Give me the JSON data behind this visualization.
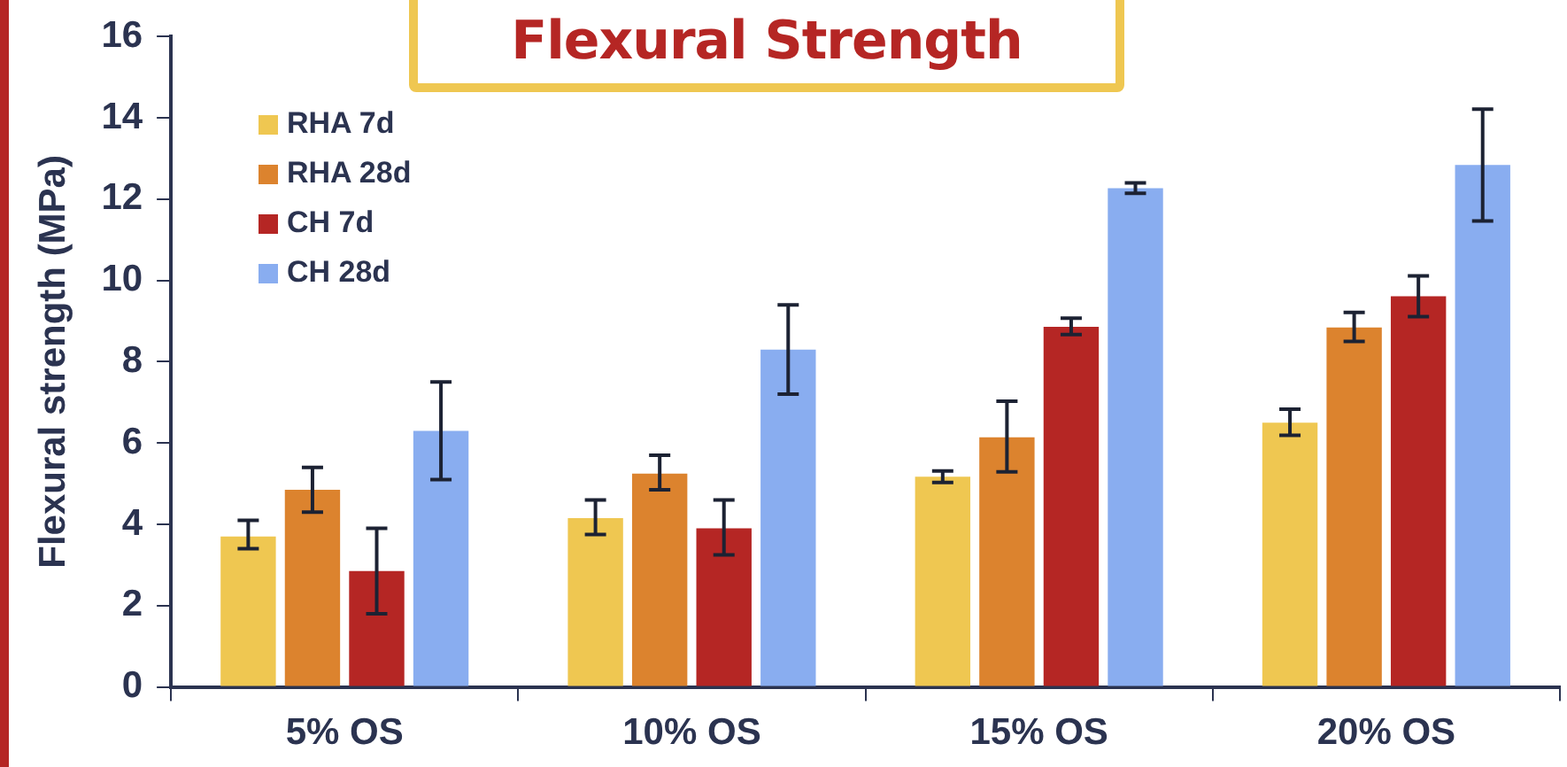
{
  "chart_data": {
    "type": "bar",
    "title": "Flexural Strength",
    "ylabel": "Flexural strength (MPa)",
    "categories": [
      "5% OS",
      "10% OS",
      "15% OS",
      "20% OS"
    ],
    "series": [
      {
        "name": "RHA 7d",
        "color": "#efc751",
        "values": [
          3.7,
          4.15,
          5.17,
          6.5
        ],
        "errors": [
          [
            3.4,
            4.1
          ],
          [
            3.75,
            4.6
          ],
          [
            5.03,
            5.31
          ],
          [
            6.19,
            6.83
          ]
        ]
      },
      {
        "name": "RHA 28d",
        "color": "#dc832e",
        "values": [
          4.85,
          5.25,
          6.14,
          8.84
        ],
        "errors": [
          [
            4.3,
            5.4
          ],
          [
            4.85,
            5.7
          ],
          [
            5.29,
            7.03
          ],
          [
            8.5,
            9.21
          ]
        ]
      },
      {
        "name": "CH 7d",
        "color": "#b52624",
        "values": [
          2.85,
          3.9,
          8.86,
          9.61
        ],
        "errors": [
          [
            1.8,
            3.9
          ],
          [
            3.25,
            4.6
          ],
          [
            8.67,
            9.07
          ],
          [
            9.11,
            10.11
          ]
        ]
      },
      {
        "name": "CH 28d",
        "color": "#89adf0",
        "values": [
          6.3,
          8.3,
          12.27,
          12.84
        ],
        "errors": [
          [
            5.1,
            7.5
          ],
          [
            7.2,
            9.4
          ],
          [
            12.14,
            12.4
          ],
          [
            11.46,
            14.21
          ]
        ]
      }
    ],
    "ylim": [
      0,
      16
    ],
    "yticks": [
      0,
      2,
      4,
      6,
      8,
      10,
      12,
      14,
      16
    ],
    "grid": false,
    "legend": "top left"
  }
}
